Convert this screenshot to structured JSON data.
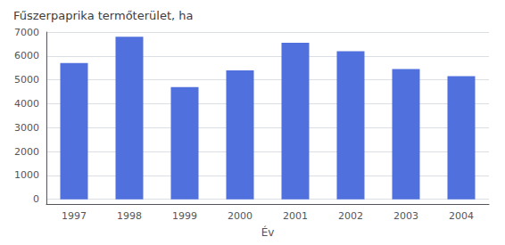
{
  "chart_data": {
    "type": "bar",
    "title": "Fűszerpaprika termőterület, ha",
    "xlabel": "Év",
    "categories": [
      "1997",
      "1998",
      "1999",
      "2000",
      "2001",
      "2002",
      "2003",
      "2004"
    ],
    "values": [
      5700,
      6800,
      4700,
      5400,
      6550,
      6200,
      5450,
      5150
    ],
    "ylim": [
      -200,
      7000
    ],
    "yticks": [
      0,
      1000,
      2000,
      3000,
      4000,
      5000,
      6000,
      7000
    ],
    "grid": true
  }
}
